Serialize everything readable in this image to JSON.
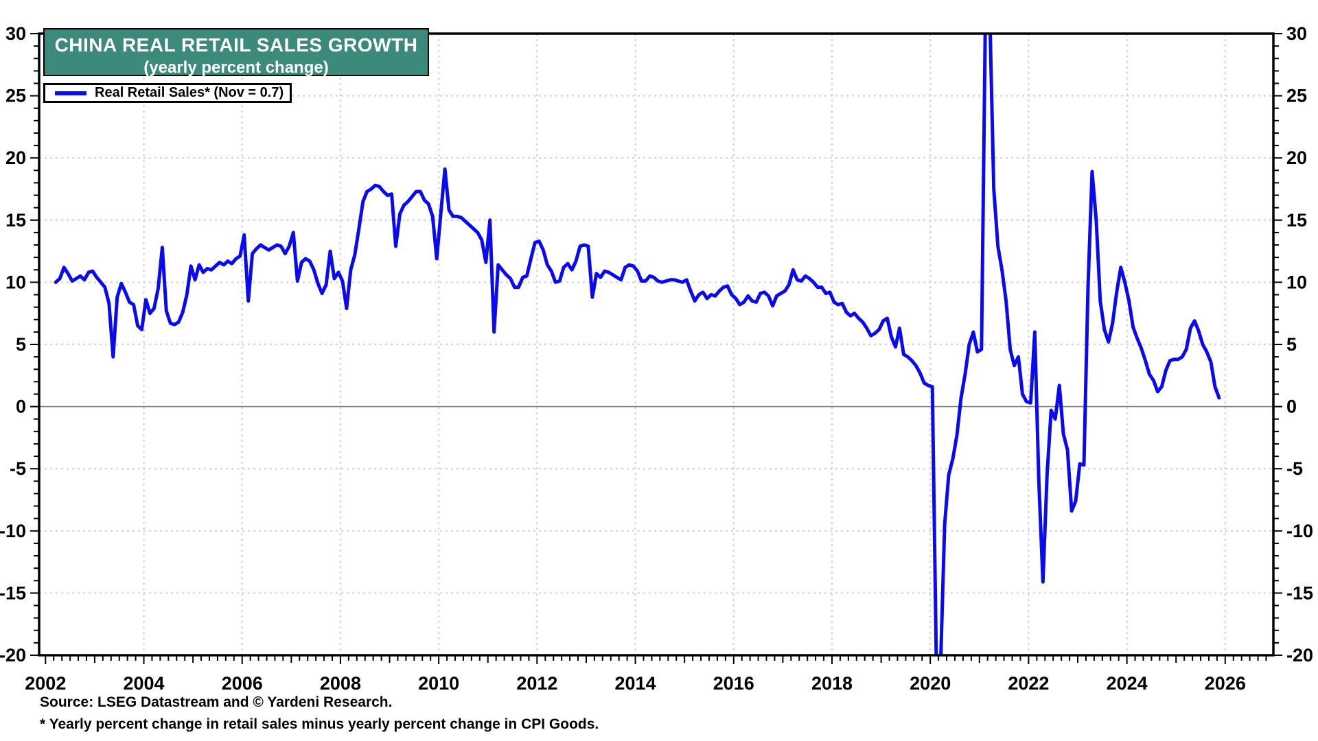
{
  "header": {
    "title": "CHINA REAL RETAIL SALES GROWTH",
    "subtitle": "(yearly percent change)"
  },
  "legend": {
    "label": "Real Retail Sales* (Nov = 0.7)"
  },
  "footer": {
    "source": "Source: LSEG Datastream and © Yardeni Research.",
    "footnote": "* Yearly percent change in retail sales minus yearly percent change in CPI Goods."
  },
  "colors": {
    "line": "#0a0aef",
    "title_bg": "#3b8a7b",
    "grid": "#d6d6d6",
    "zero_line": "#7f7f7f",
    "frame": "#000000"
  },
  "chart_data": {
    "type": "line",
    "title": "CHINA REAL RETAIL SALES GROWTH (yearly percent change)",
    "xlabel": "",
    "ylabel": "yearly percent change",
    "grid": true,
    "legend_position": "top-left",
    "x_axis": {
      "min_year": 2001.87,
      "max_year": 2026.98,
      "tick_years": [
        2002,
        2004,
        2006,
        2008,
        2010,
        2012,
        2014,
        2016,
        2018,
        2020,
        2022,
        2024,
        2026
      ],
      "grid_years": [
        2004,
        2006,
        2008,
        2010,
        2012,
        2014,
        2016,
        2018,
        2020,
        2022,
        2024,
        2026
      ]
    },
    "y_axis": {
      "min": -20,
      "max": 30,
      "major_step": 5,
      "minor_step": 1,
      "labels_both_sides": true
    },
    "series": [
      {
        "name": "Real Retail Sales",
        "start_year": 2002,
        "start_month": 3,
        "frequency": "monthly",
        "last_point_label": "Nov = 0.7",
        "values": [
          10.0,
          10.3,
          11.2,
          10.7,
          10.1,
          10.3,
          10.5,
          10.2,
          10.8,
          10.9,
          10.4,
          10.0,
          9.6,
          8.3,
          4.0,
          8.8,
          9.9,
          9.2,
          8.4,
          8.2,
          6.5,
          6.2,
          8.6,
          7.5,
          7.9,
          9.5,
          12.8,
          7.7,
          6.7,
          6.6,
          6.8,
          7.6,
          9.0,
          11.3,
          10.2,
          11.4,
          10.8,
          11.1,
          11.0,
          11.3,
          11.6,
          11.4,
          11.7,
          11.5,
          11.9,
          12.1,
          13.8,
          8.5,
          12.3,
          12.7,
          13.0,
          12.8,
          12.6,
          12.8,
          13.0,
          12.9,
          12.3,
          12.9,
          14.0,
          10.1,
          11.6,
          11.9,
          11.7,
          11.0,
          9.9,
          9.1,
          9.8,
          12.5,
          10.3,
          10.8,
          10.1,
          7.9,
          11.0,
          12.2,
          14.3,
          16.5,
          17.3,
          17.5,
          17.8,
          17.7,
          17.3,
          17.0,
          17.1,
          12.9,
          15.5,
          16.2,
          16.5,
          16.9,
          17.3,
          17.3,
          16.6,
          16.3,
          15.3,
          11.9,
          15.5,
          19.1,
          15.8,
          15.3,
          15.3,
          15.2,
          14.9,
          14.6,
          14.3,
          14.0,
          13.4,
          11.6,
          15.0,
          6.0,
          11.4,
          11.0,
          10.6,
          10.3,
          9.6,
          9.6,
          10.4,
          10.5,
          11.9,
          13.2,
          13.3,
          12.6,
          11.4,
          10.9,
          10.0,
          10.1,
          11.2,
          11.5,
          11.0,
          11.7,
          12.9,
          13.0,
          12.9,
          8.8,
          10.7,
          10.4,
          10.9,
          10.8,
          10.6,
          10.4,
          10.2,
          11.2,
          11.4,
          11.3,
          10.9,
          10.1,
          10.1,
          10.5,
          10.4,
          10.1,
          10.0,
          10.1,
          10.2,
          10.2,
          10.1,
          10.0,
          10.2,
          9.3,
          8.5,
          9.0,
          9.2,
          8.7,
          9.0,
          8.9,
          9.3,
          9.6,
          9.7,
          9.0,
          8.7,
          8.2,
          8.4,
          8.9,
          8.5,
          8.4,
          9.1,
          9.2,
          8.9,
          8.1,
          8.9,
          9.1,
          9.3,
          9.8,
          11.0,
          10.2,
          10.1,
          10.5,
          10.3,
          10.0,
          9.6,
          9.6,
          9.1,
          9.2,
          8.4,
          8.2,
          8.3,
          7.6,
          7.3,
          7.5,
          7.1,
          6.8,
          6.3,
          5.7,
          5.9,
          6.2,
          6.9,
          7.1,
          5.6,
          4.8,
          6.3,
          4.2,
          4.0,
          3.7,
          3.3,
          2.7,
          1.9,
          1.7,
          1.6,
          -21.0,
          -21.0,
          -9.5,
          -5.5,
          -4.2,
          -2.3,
          0.7,
          2.6,
          5.0,
          6.0,
          4.4,
          4.6,
          33.0,
          32.0,
          17.5,
          12.9,
          11.0,
          8.5,
          4.6,
          3.3,
          4.0,
          1.0,
          0.4,
          0.3,
          6.0,
          -6.0,
          -14.1,
          -5.5,
          -0.3,
          -1.0,
          1.7,
          -2.2,
          -3.5,
          -8.4,
          -7.6,
          -4.6,
          -4.7,
          9.5,
          18.9,
          15.0,
          8.5,
          6.2,
          5.2,
          6.7,
          9.2,
          11.2,
          10.0,
          8.5,
          6.4,
          5.5,
          4.7,
          3.7,
          2.6,
          2.1,
          1.2,
          1.6,
          2.9,
          3.7,
          3.8,
          3.8,
          4.0,
          4.6,
          6.3,
          6.9,
          6.1,
          5.0,
          4.4,
          3.6,
          1.6,
          0.7
        ]
      }
    ]
  }
}
